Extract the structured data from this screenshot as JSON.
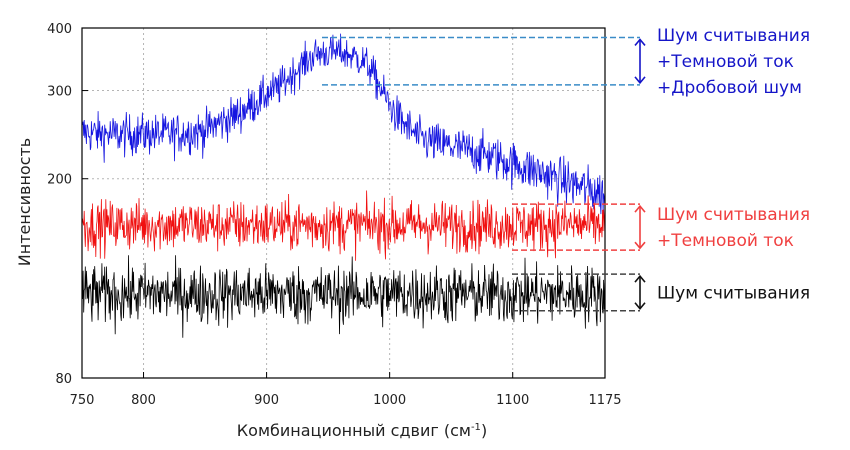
{
  "chart_data": {
    "type": "line",
    "xlabel": "Комбинационный сдвиг (см",
    "xlabel_superscript": "-1",
    "xlabel_suffix": ")",
    "ylabel": "Интенсивность",
    "xlim": [
      750,
      1175
    ],
    "ylim": [
      80,
      400
    ],
    "x_ticks": [
      750,
      800,
      900,
      1000,
      1100,
      1175
    ],
    "y_ticks": [
      80,
      200,
      300,
      400
    ],
    "grid": true,
    "series": [
      {
        "color": "#1515e0",
        "x": [
          750,
          775,
          800,
          825,
          850,
          860,
          875,
          890,
          900,
          910,
          920,
          930,
          940,
          950,
          960,
          970,
          980,
          985,
          990,
          1000,
          1010,
          1025,
          1050,
          1075,
          1100,
          1125,
          1150,
          1175
        ],
        "y": [
          248,
          245,
          246,
          246,
          250,
          258,
          268,
          283,
          295,
          305,
          322,
          340,
          355,
          358,
          358,
          352,
          342,
          330,
          312,
          280,
          260,
          240,
          232,
          225,
          215,
          205,
          195,
          186
        ]
      },
      {
        "color": "#f01010",
        "x": [
          750,
          1175
        ],
        "y": [
          162,
          162
        ]
      },
      {
        "color": "#000000",
        "x": [
          750,
          1175
        ],
        "y": [
          118,
          118
        ]
      }
    ],
    "annotations": [
      {
        "lines": [
          "Шум считывания",
          "+Темновой ток",
          "+Дробовой шум"
        ],
        "color": "#1515c8",
        "guide_color": "#3a8cc8",
        "range": [
          308,
          383
        ]
      },
      {
        "lines": [
          "Шум считывания",
          "+Темновой ток"
        ],
        "color": "#f04040",
        "guide_color": "#f04040",
        "range": [
          144,
          178
        ]
      },
      {
        "lines": [
          "Шум считывания"
        ],
        "color": "#111111",
        "guide_color": "#444444",
        "range": [
          109,
          129
        ]
      }
    ]
  }
}
